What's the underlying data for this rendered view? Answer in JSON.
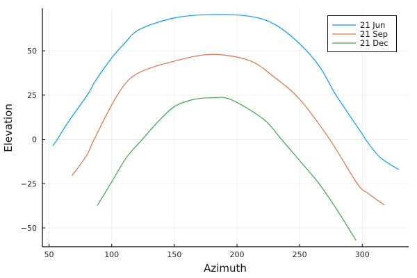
{
  "chart_data": {
    "type": "line",
    "title": "",
    "xlabel": "Azimuth",
    "ylabel": "Elevation",
    "xlim": [
      44.7,
      337
    ],
    "ylim": [
      -60.6,
      74
    ],
    "xticks": [
      50,
      100,
      150,
      200,
      250,
      300
    ],
    "yticks": [
      -50,
      -25,
      0,
      25,
      50
    ],
    "grid": true,
    "legend": "top-right",
    "series": [
      {
        "name": "21 Jun",
        "color": "#009af9",
        "points": [
          [
            53,
            -3.5
          ],
          [
            56.6,
            0
          ],
          [
            65,
            9.5
          ],
          [
            80.5,
            25
          ],
          [
            87,
            33
          ],
          [
            100,
            46
          ],
          [
            110,
            54
          ],
          [
            122,
            62
          ],
          [
            150,
            68.6
          ],
          [
            180,
            70.5
          ],
          [
            210,
            69.5
          ],
          [
            230,
            65
          ],
          [
            250,
            54
          ],
          [
            266,
            41
          ],
          [
            279,
            25
          ],
          [
            300,
            3
          ],
          [
            302.6,
            0
          ],
          [
            314,
            -10
          ],
          [
            329,
            -17
          ]
        ]
      },
      {
        "name": "21 Sep",
        "color": "#e26f46",
        "points": [
          [
            68.3,
            -20.5
          ],
          [
            80,
            -9
          ],
          [
            86,
            0
          ],
          [
            104.5,
            25
          ],
          [
            120,
            37
          ],
          [
            150,
            44.2
          ],
          [
            180,
            48
          ],
          [
            210,
            44.5
          ],
          [
            230,
            35
          ],
          [
            250,
            22.7
          ],
          [
            274,
            0
          ],
          [
            296,
            -25
          ],
          [
            304.5,
            -30.4
          ],
          [
            317.5,
            -37
          ]
        ]
      },
      {
        "name": "21 Dec",
        "color": "#3da44d",
        "points": [
          [
            88.6,
            -37.3
          ],
          [
            100,
            -24
          ],
          [
            112,
            -10
          ],
          [
            124.5,
            0
          ],
          [
            137,
            10
          ],
          [
            150,
            18.5
          ],
          [
            165,
            22.5
          ],
          [
            180,
            23.5
          ],
          [
            195,
            22.5
          ],
          [
            221,
            11.5
          ],
          [
            235.5,
            0
          ],
          [
            250,
            -12
          ],
          [
            265.5,
            -25
          ],
          [
            280,
            -40
          ],
          [
            295,
            -57
          ]
        ]
      }
    ]
  }
}
